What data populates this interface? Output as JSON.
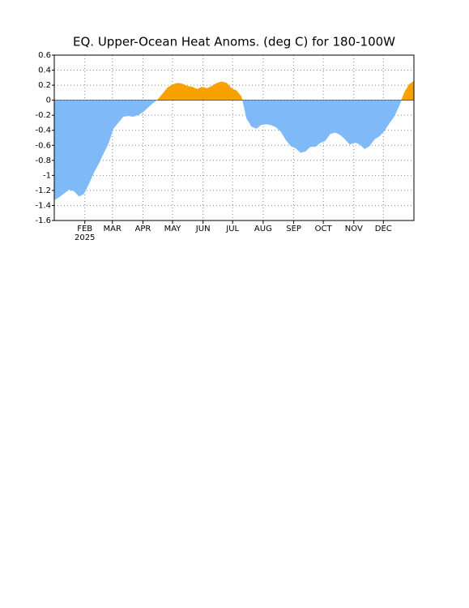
{
  "chart_data": {
    "type": "area",
    "title": "EQ. Upper-Ocean Heat Anoms. (deg C) for 180-100W",
    "year_label": "2025",
    "x": [
      0,
      5,
      10,
      15,
      20,
      25,
      30,
      35,
      40,
      45,
      50,
      55,
      60,
      65,
      70,
      75,
      80,
      85,
      90,
      95,
      100,
      105,
      110,
      115,
      120,
      125,
      130,
      135,
      140,
      145,
      150,
      155,
      160,
      165,
      170,
      175,
      180,
      185,
      190,
      195,
      200,
      205,
      210,
      215,
      220,
      225,
      230,
      235,
      240,
      245,
      250,
      255,
      260,
      265,
      270,
      275,
      280,
      285,
      290,
      295,
      300,
      305,
      310,
      315,
      320,
      325,
      330,
      335,
      340,
      345,
      350,
      355,
      360,
      365
    ],
    "values": [
      -1.33,
      -1.29,
      -1.24,
      -1.19,
      -1.21,
      -1.28,
      -1.25,
      -1.12,
      -0.97,
      -0.85,
      -0.71,
      -0.58,
      -0.38,
      -0.3,
      -0.22,
      -0.21,
      -0.22,
      -0.2,
      -0.16,
      -0.1,
      -0.04,
      0.01,
      0.09,
      0.17,
      0.21,
      0.23,
      0.22,
      0.19,
      0.18,
      0.15,
      0.18,
      0.16,
      0.19,
      0.23,
      0.25,
      0.23,
      0.16,
      0.13,
      0.05,
      -0.24,
      -0.35,
      -0.38,
      -0.33,
      -0.32,
      -0.33,
      -0.36,
      -0.42,
      -0.53,
      -0.61,
      -0.64,
      -0.7,
      -0.68,
      -0.62,
      -0.62,
      -0.57,
      -0.54,
      -0.45,
      -0.43,
      -0.46,
      -0.52,
      -0.59,
      -0.56,
      -0.59,
      -0.65,
      -0.61,
      -0.52,
      -0.48,
      -0.41,
      -0.31,
      -0.22,
      -0.08,
      0.1,
      0.21,
      0.26
    ],
    "positive_color": "#f9a100",
    "negative_color": "#80b9f7",
    "xlim": [
      0,
      365
    ],
    "xticks": [
      {
        "value": 31,
        "label": "FEB"
      },
      {
        "value": 59,
        "label": "MAR"
      },
      {
        "value": 90,
        "label": "APR"
      },
      {
        "value": 120,
        "label": "MAY"
      },
      {
        "value": 151,
        "label": "JUN"
      },
      {
        "value": 181,
        "label": "JUL"
      },
      {
        "value": 212,
        "label": "AUG"
      },
      {
        "value": 243,
        "label": "SEP"
      },
      {
        "value": 273,
        "label": "OCT"
      },
      {
        "value": 304,
        "label": "NOV"
      },
      {
        "value": 334,
        "label": "DEC"
      }
    ],
    "ylim": [
      -1.6,
      0.6
    ],
    "yticks": [
      -1.6,
      -1.4,
      -1.2,
      -1,
      -0.8,
      -0.6,
      -0.4,
      -0.2,
      0,
      0.2,
      0.4,
      0.6
    ],
    "grid": true
  }
}
